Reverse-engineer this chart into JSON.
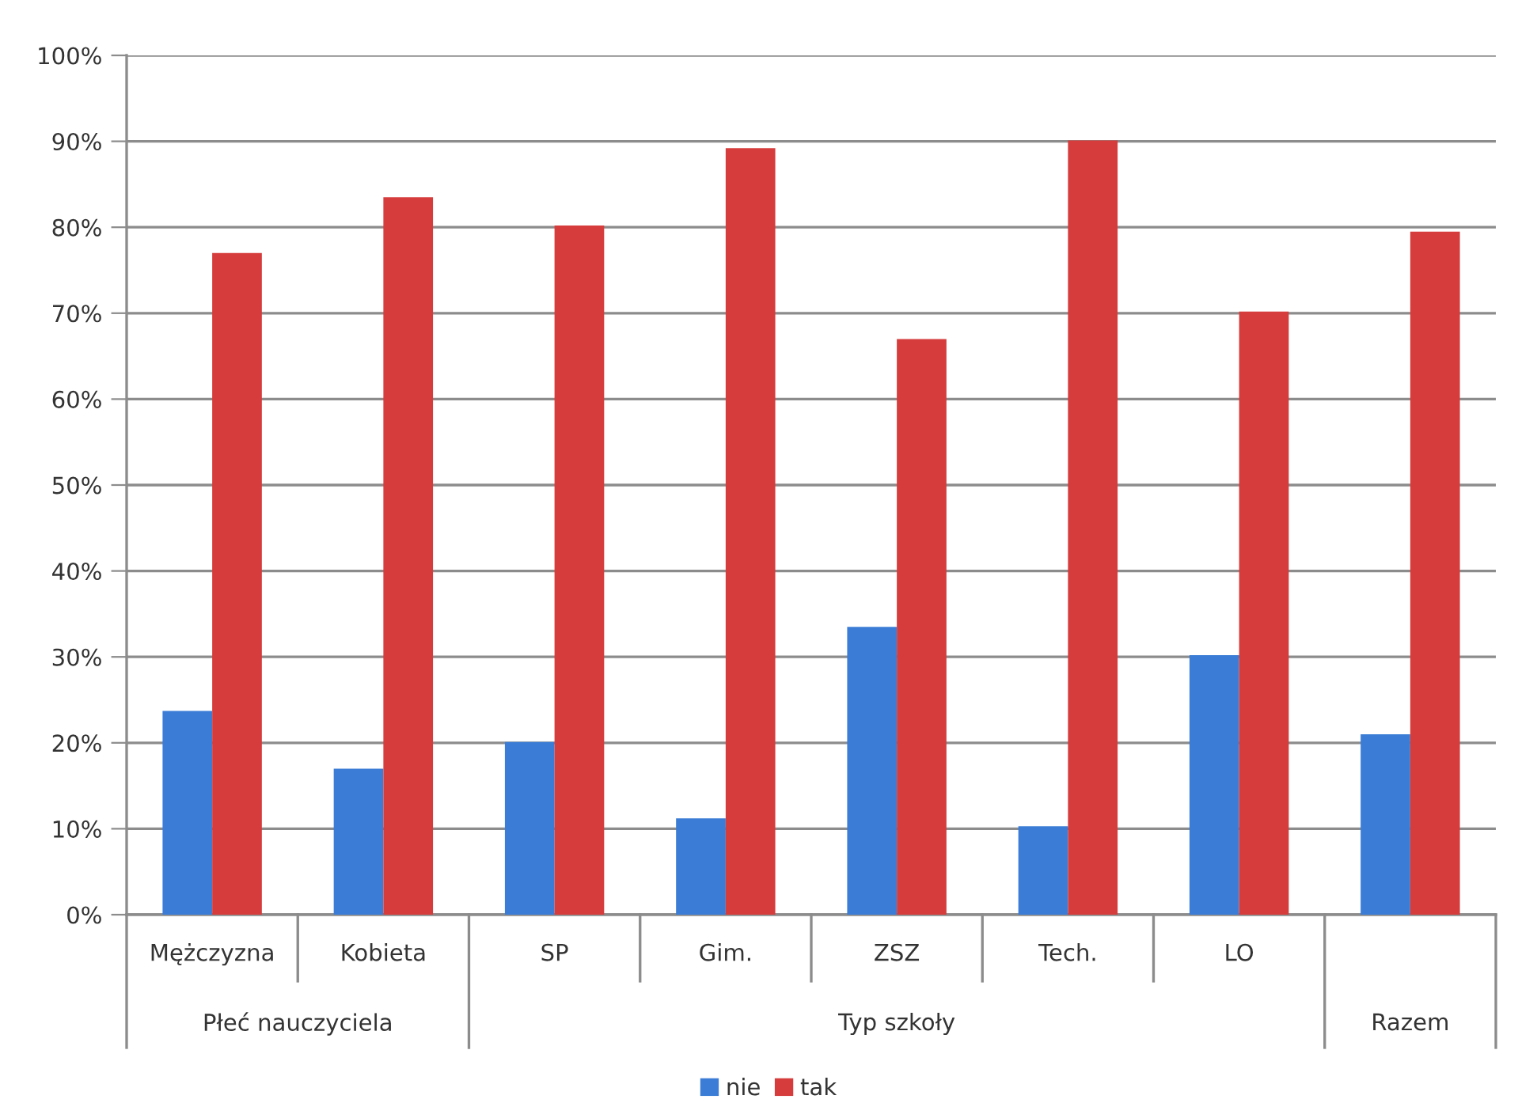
{
  "chart_data": {
    "type": "bar",
    "categories": [
      "Mężczyzna",
      "Kobieta",
      "SP",
      "Gim.",
      "ZSZ",
      "Tech.",
      "LO",
      null
    ],
    "series": [
      {
        "name": "nie",
        "color": "#3b7dd6",
        "values": [
          23.7,
          17.0,
          20.1,
          11.2,
          33.5,
          10.3,
          30.2,
          21.0
        ]
      },
      {
        "name": "tak",
        "color": "#d63c3c",
        "values": [
          77.0,
          83.5,
          80.2,
          89.2,
          67.0,
          90.1,
          70.2,
          79.5
        ]
      }
    ],
    "ylim": [
      0,
      100
    ],
    "yticks": [
      {
        "value": 0,
        "label": "0%"
      },
      {
        "value": 10,
        "label": "10%"
      },
      {
        "value": 20,
        "label": "20%"
      },
      {
        "value": 30,
        "label": "30%"
      },
      {
        "value": 40,
        "label": "40%"
      },
      {
        "value": 50,
        "label": "50%"
      },
      {
        "value": 60,
        "label": "60%"
      },
      {
        "value": 70,
        "label": "70%"
      },
      {
        "value": 80,
        "label": "80%"
      },
      {
        "value": 90,
        "label": "90%"
      },
      {
        "value": 100,
        "label": "100%"
      }
    ],
    "grid": "y",
    "legend": "bottom",
    "annotations": [
      "Płeć nauczyciela",
      "Typ szkoły",
      "Razem"
    ]
  }
}
